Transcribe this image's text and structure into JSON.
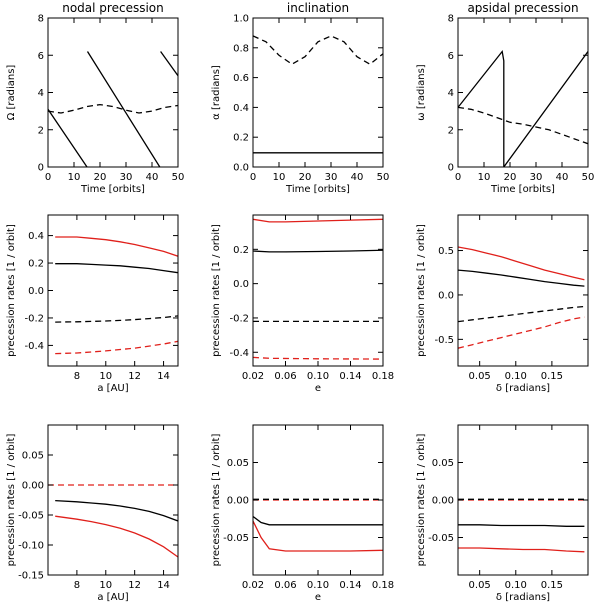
{
  "colors": {
    "axis": "#000000",
    "black": "#000000",
    "red": "#e0201b"
  },
  "chart_data": [
    {
      "id": "p11",
      "type": "line",
      "title": "nodal precession",
      "xlabel": "Time [orbits]",
      "ylabel": "Ω [radians]",
      "xlim": [
        0,
        50
      ],
      "ylim": [
        0,
        8
      ],
      "xticks": [
        0,
        10,
        20,
        30,
        40,
        50
      ],
      "yticks": [
        0,
        2,
        4,
        6,
        8
      ],
      "xtick_labels": [
        "0",
        "10",
        "20",
        "30",
        "40",
        "50"
      ],
      "ytick_labels": [
        "0",
        "2",
        "4",
        "6",
        "8"
      ],
      "series": [
        {
          "name": "Ω",
          "color": "black",
          "dash": false,
          "x": [
            0,
            15,
            15,
            15.2,
            43,
            43,
            43.3,
            50
          ],
          "y": [
            3.1,
            0.0,
            null,
            6.2,
            0.0,
            null,
            6.2,
            4.9
          ]
        },
        {
          "name": "Ω dashed",
          "color": "black",
          "dash": true,
          "x": [
            0,
            5,
            10,
            15,
            20,
            25,
            30,
            35,
            40,
            45,
            50
          ],
          "y": [
            3.0,
            2.9,
            3.05,
            3.25,
            3.35,
            3.25,
            3.05,
            2.9,
            3.0,
            3.2,
            3.3
          ]
        }
      ]
    },
    {
      "id": "p12",
      "type": "line",
      "title": "inclination",
      "xlabel": "Time [orbits]",
      "ylabel": "α [radians]",
      "xlim": [
        0,
        50
      ],
      "ylim": [
        0,
        1.0
      ],
      "xticks": [
        0,
        10,
        20,
        30,
        40,
        50
      ],
      "yticks": [
        0,
        0.2,
        0.4,
        0.6,
        0.8,
        1.0
      ],
      "xtick_labels": [
        "0",
        "10",
        "20",
        "30",
        "40",
        "50"
      ],
      "ytick_labels": [
        "0.0",
        "0.2",
        "0.4",
        "0.6",
        "0.8",
        "1.0"
      ],
      "series": [
        {
          "name": "α",
          "color": "black",
          "dash": false,
          "x": [
            0,
            50
          ],
          "y": [
            0.095,
            0.095
          ]
        },
        {
          "name": "α dashed",
          "color": "black",
          "dash": true,
          "x": [
            0,
            5,
            10,
            15,
            20,
            25,
            30,
            35,
            40,
            45,
            50
          ],
          "y": [
            0.88,
            0.84,
            0.75,
            0.69,
            0.74,
            0.84,
            0.88,
            0.84,
            0.74,
            0.69,
            0.76
          ]
        }
      ]
    },
    {
      "id": "p13",
      "type": "line",
      "title": "apsidal precession",
      "xlabel": "Time [orbits]",
      "ylabel": "ω [radians]",
      "xlim": [
        0,
        50
      ],
      "ylim": [
        0,
        8
      ],
      "xticks": [
        0,
        10,
        20,
        30,
        40,
        50
      ],
      "yticks": [
        0,
        2,
        4,
        6,
        8
      ],
      "xtick_labels": [
        "0",
        "10",
        "20",
        "30",
        "40",
        "50"
      ],
      "ytick_labels": [
        "0",
        "2",
        "4",
        "6",
        "8"
      ],
      "series": [
        {
          "name": "ω",
          "color": "black",
          "dash": false,
          "x": [
            0,
            17,
            17.6,
            17.6,
            50
          ],
          "y": [
            3.2,
            6.2,
            5.7,
            0.0,
            6.2
          ]
        },
        {
          "name": "ω dashed",
          "color": "black",
          "dash": true,
          "x": [
            0,
            5,
            10,
            15,
            20,
            25,
            30,
            35,
            40,
            45,
            50
          ],
          "y": [
            3.2,
            3.1,
            2.9,
            2.65,
            2.4,
            2.3,
            2.15,
            2.0,
            1.75,
            1.5,
            1.25
          ]
        }
      ]
    },
    {
      "id": "p21",
      "type": "line",
      "title": "",
      "xlabel": "a [AU]",
      "ylabel": "precession rates [1 / orbit]",
      "xlim": [
        6,
        15
      ],
      "ylim": [
        -0.55,
        0.55
      ],
      "xticks": [
        8,
        10,
        12,
        14
      ],
      "yticks": [
        -0.4,
        -0.2,
        0.0,
        0.2,
        0.4
      ],
      "xtick_labels": [
        "8",
        "10",
        "12",
        "14"
      ],
      "ytick_labels": [
        "-0.4",
        "-0.2",
        "0.0",
        "0.2",
        "0.4"
      ],
      "series": [
        {
          "name": "red",
          "color": "red",
          "dash": false,
          "x": [
            6.5,
            8,
            9,
            10,
            11,
            12,
            13,
            14,
            15
          ],
          "y": [
            0.39,
            0.39,
            0.38,
            0.37,
            0.355,
            0.335,
            0.31,
            0.285,
            0.25
          ]
        },
        {
          "name": "black",
          "color": "black",
          "dash": false,
          "x": [
            6.5,
            8,
            9,
            10,
            11,
            12,
            13,
            14,
            15
          ],
          "y": [
            0.195,
            0.195,
            0.19,
            0.185,
            0.18,
            0.17,
            0.16,
            0.145,
            0.13
          ]
        },
        {
          "name": "black dashed",
          "color": "black",
          "dash": true,
          "x": [
            6.5,
            8,
            9,
            10,
            11,
            12,
            13,
            14,
            15
          ],
          "y": [
            -0.23,
            -0.228,
            -0.225,
            -0.222,
            -0.218,
            -0.212,
            -0.205,
            -0.197,
            -0.185
          ]
        },
        {
          "name": "red dashed",
          "color": "red",
          "dash": true,
          "x": [
            6.5,
            8,
            9,
            10,
            11,
            12,
            13,
            14,
            15
          ],
          "y": [
            -0.46,
            -0.455,
            -0.448,
            -0.44,
            -0.43,
            -0.42,
            -0.405,
            -0.39,
            -0.37
          ]
        }
      ]
    },
    {
      "id": "p22",
      "type": "line",
      "title": "",
      "xlabel": "e",
      "ylabel": "precession rates [1 / orbit]",
      "xlim": [
        0.02,
        0.18
      ],
      "ylim": [
        -0.48,
        0.4
      ],
      "xticks": [
        0.02,
        0.06,
        0.1,
        0.14,
        0.18
      ],
      "yticks": [
        -0.4,
        -0.2,
        0.0,
        0.2
      ],
      "xtick_labels": [
        "0.02",
        "0.06",
        "0.10",
        "0.14",
        "0.18"
      ],
      "ytick_labels": [
        "-0.4",
        "-0.2",
        "0.0",
        "0.2"
      ],
      "series": [
        {
          "name": "red",
          "color": "red",
          "dash": false,
          "x": [
            0.02,
            0.04,
            0.06,
            0.1,
            0.14,
            0.18
          ],
          "y": [
            0.375,
            0.36,
            0.36,
            0.365,
            0.37,
            0.375
          ]
        },
        {
          "name": "black",
          "color": "black",
          "dash": false,
          "x": [
            0.02,
            0.04,
            0.06,
            0.1,
            0.14,
            0.18
          ],
          "y": [
            0.19,
            0.185,
            0.185,
            0.187,
            0.19,
            0.195
          ]
        },
        {
          "name": "black dashed",
          "color": "black",
          "dash": true,
          "x": [
            0.02,
            0.18
          ],
          "y": [
            -0.22,
            -0.22
          ]
        },
        {
          "name": "red dashed",
          "color": "red",
          "dash": true,
          "x": [
            0.02,
            0.04,
            0.1,
            0.18
          ],
          "y": [
            -0.43,
            -0.435,
            -0.438,
            -0.44
          ]
        }
      ]
    },
    {
      "id": "p23",
      "type": "line",
      "title": "",
      "xlabel": "δ [radians]",
      "ylabel": "precession rates [1 / orbit]",
      "xlim": [
        0.02,
        0.2
      ],
      "ylim": [
        -0.8,
        0.9
      ],
      "xticks": [
        0.05,
        0.1,
        0.15
      ],
      "yticks": [
        -0.5,
        0.0,
        0.5
      ],
      "xtick_labels": [
        "0.05",
        "0.10",
        "0.15"
      ],
      "ytick_labels": [
        "-0.5",
        "0.0",
        "0.5"
      ],
      "series": [
        {
          "name": "red",
          "color": "red",
          "dash": false,
          "x": [
            0.02,
            0.04,
            0.06,
            0.08,
            0.1,
            0.12,
            0.14,
            0.16,
            0.18,
            0.195
          ],
          "y": [
            0.54,
            0.51,
            0.47,
            0.43,
            0.38,
            0.33,
            0.28,
            0.24,
            0.2,
            0.17
          ]
        },
        {
          "name": "black",
          "color": "black",
          "dash": false,
          "x": [
            0.02,
            0.04,
            0.06,
            0.08,
            0.1,
            0.12,
            0.14,
            0.16,
            0.18,
            0.195
          ],
          "y": [
            0.28,
            0.265,
            0.245,
            0.225,
            0.2,
            0.175,
            0.15,
            0.13,
            0.11,
            0.1
          ]
        },
        {
          "name": "black dashed",
          "color": "black",
          "dash": true,
          "x": [
            0.02,
            0.04,
            0.06,
            0.08,
            0.1,
            0.12,
            0.14,
            0.16,
            0.18,
            0.195
          ],
          "y": [
            -0.3,
            -0.28,
            -0.26,
            -0.24,
            -0.22,
            -0.2,
            -0.18,
            -0.16,
            -0.14,
            -0.13
          ]
        },
        {
          "name": "red dashed",
          "color": "red",
          "dash": true,
          "x": [
            0.02,
            0.04,
            0.06,
            0.08,
            0.1,
            0.12,
            0.14,
            0.16,
            0.18,
            0.195
          ],
          "y": [
            -0.6,
            -0.56,
            -0.52,
            -0.48,
            -0.44,
            -0.4,
            -0.36,
            -0.31,
            -0.27,
            -0.25
          ]
        }
      ]
    },
    {
      "id": "p31",
      "type": "line",
      "title": "",
      "xlabel": "a [AU]",
      "ylabel": "precession rates [1 / orbit]",
      "xlim": [
        6,
        15
      ],
      "ylim": [
        -0.15,
        0.1
      ],
      "xticks": [
        8,
        10,
        12,
        14
      ],
      "yticks": [
        -0.15,
        -0.1,
        -0.05,
        0.0,
        0.05
      ],
      "xtick_labels": [
        "8",
        "10",
        "12",
        "14"
      ],
      "ytick_labels": [
        "-0.15",
        "-0.10",
        "-0.05",
        "0.00",
        "0.05"
      ],
      "series": [
        {
          "name": "red dashed",
          "color": "red",
          "dash": true,
          "x": [
            6,
            15
          ],
          "y": [
            0.0,
            0.0
          ]
        },
        {
          "name": "black",
          "color": "black",
          "dash": false,
          "x": [
            6.5,
            8,
            9,
            10,
            11,
            12,
            13,
            14,
            15
          ],
          "y": [
            -0.026,
            -0.028,
            -0.03,
            -0.032,
            -0.035,
            -0.039,
            -0.044,
            -0.051,
            -0.06
          ]
        },
        {
          "name": "red",
          "color": "red",
          "dash": false,
          "x": [
            6.5,
            8,
            9,
            10,
            11,
            12,
            13,
            14,
            15
          ],
          "y": [
            -0.052,
            -0.057,
            -0.061,
            -0.066,
            -0.072,
            -0.08,
            -0.09,
            -0.103,
            -0.12
          ]
        }
      ]
    },
    {
      "id": "p32",
      "type": "line",
      "title": "",
      "xlabel": "e",
      "ylabel": "precession rates [1 / orbit]",
      "xlim": [
        0.02,
        0.18
      ],
      "ylim": [
        -0.1,
        0.1
      ],
      "xticks": [
        0.02,
        0.06,
        0.1,
        0.14,
        0.18
      ],
      "yticks": [
        -0.05,
        0.0,
        0.05
      ],
      "xtick_labels": [
        "0.02",
        "0.06",
        "0.10",
        "0.14",
        "0.18"
      ],
      "ytick_labels": [
        "-0.05",
        "0.00",
        "0.05"
      ],
      "series": [
        {
          "name": "red dashed",
          "color": "red",
          "dash": true,
          "x": [
            0.02,
            0.18
          ],
          "y": [
            0.0,
            0.0
          ]
        },
        {
          "name": "black dashed",
          "color": "black",
          "dash": true,
          "x": [
            0.02,
            0.18
          ],
          "y": [
            0.001,
            0.001
          ]
        },
        {
          "name": "black",
          "color": "black",
          "dash": false,
          "x": [
            0.02,
            0.03,
            0.04,
            0.06,
            0.1,
            0.14,
            0.18
          ],
          "y": [
            -0.022,
            -0.03,
            -0.033,
            -0.033,
            -0.033,
            -0.033,
            -0.033
          ]
        },
        {
          "name": "red",
          "color": "red",
          "dash": false,
          "x": [
            0.02,
            0.03,
            0.04,
            0.06,
            0.1,
            0.14,
            0.18
          ],
          "y": [
            -0.028,
            -0.05,
            -0.065,
            -0.068,
            -0.068,
            -0.068,
            -0.067
          ]
        }
      ]
    },
    {
      "id": "p33",
      "type": "line",
      "title": "",
      "xlabel": "δ [radians]",
      "ylabel": "precession rates [1 / orbit]",
      "xlim": [
        0.02,
        0.2
      ],
      "ylim": [
        -0.1,
        0.1
      ],
      "xticks": [
        0.05,
        0.1,
        0.15
      ],
      "yticks": [
        -0.05,
        0.0,
        0.05
      ],
      "xtick_labels": [
        "0.05",
        "0.10",
        "0.15"
      ],
      "ytick_labels": [
        "-0.05",
        "0.00",
        "0.05"
      ],
      "series": [
        {
          "name": "red dashed",
          "color": "red",
          "dash": true,
          "x": [
            0.02,
            0.195
          ],
          "y": [
            0.0,
            0.0
          ]
        },
        {
          "name": "black dashed",
          "color": "black",
          "dash": true,
          "x": [
            0.02,
            0.195
          ],
          "y": [
            0.001,
            0.001
          ]
        },
        {
          "name": "black",
          "color": "black",
          "dash": false,
          "x": [
            0.02,
            0.05,
            0.08,
            0.11,
            0.14,
            0.17,
            0.195
          ],
          "y": [
            -0.033,
            -0.033,
            -0.034,
            -0.034,
            -0.034,
            -0.035,
            -0.035
          ]
        },
        {
          "name": "red",
          "color": "red",
          "dash": false,
          "x": [
            0.02,
            0.05,
            0.08,
            0.11,
            0.14,
            0.17,
            0.195
          ],
          "y": [
            -0.064,
            -0.064,
            -0.065,
            -0.066,
            -0.066,
            -0.068,
            -0.069
          ]
        }
      ]
    }
  ]
}
